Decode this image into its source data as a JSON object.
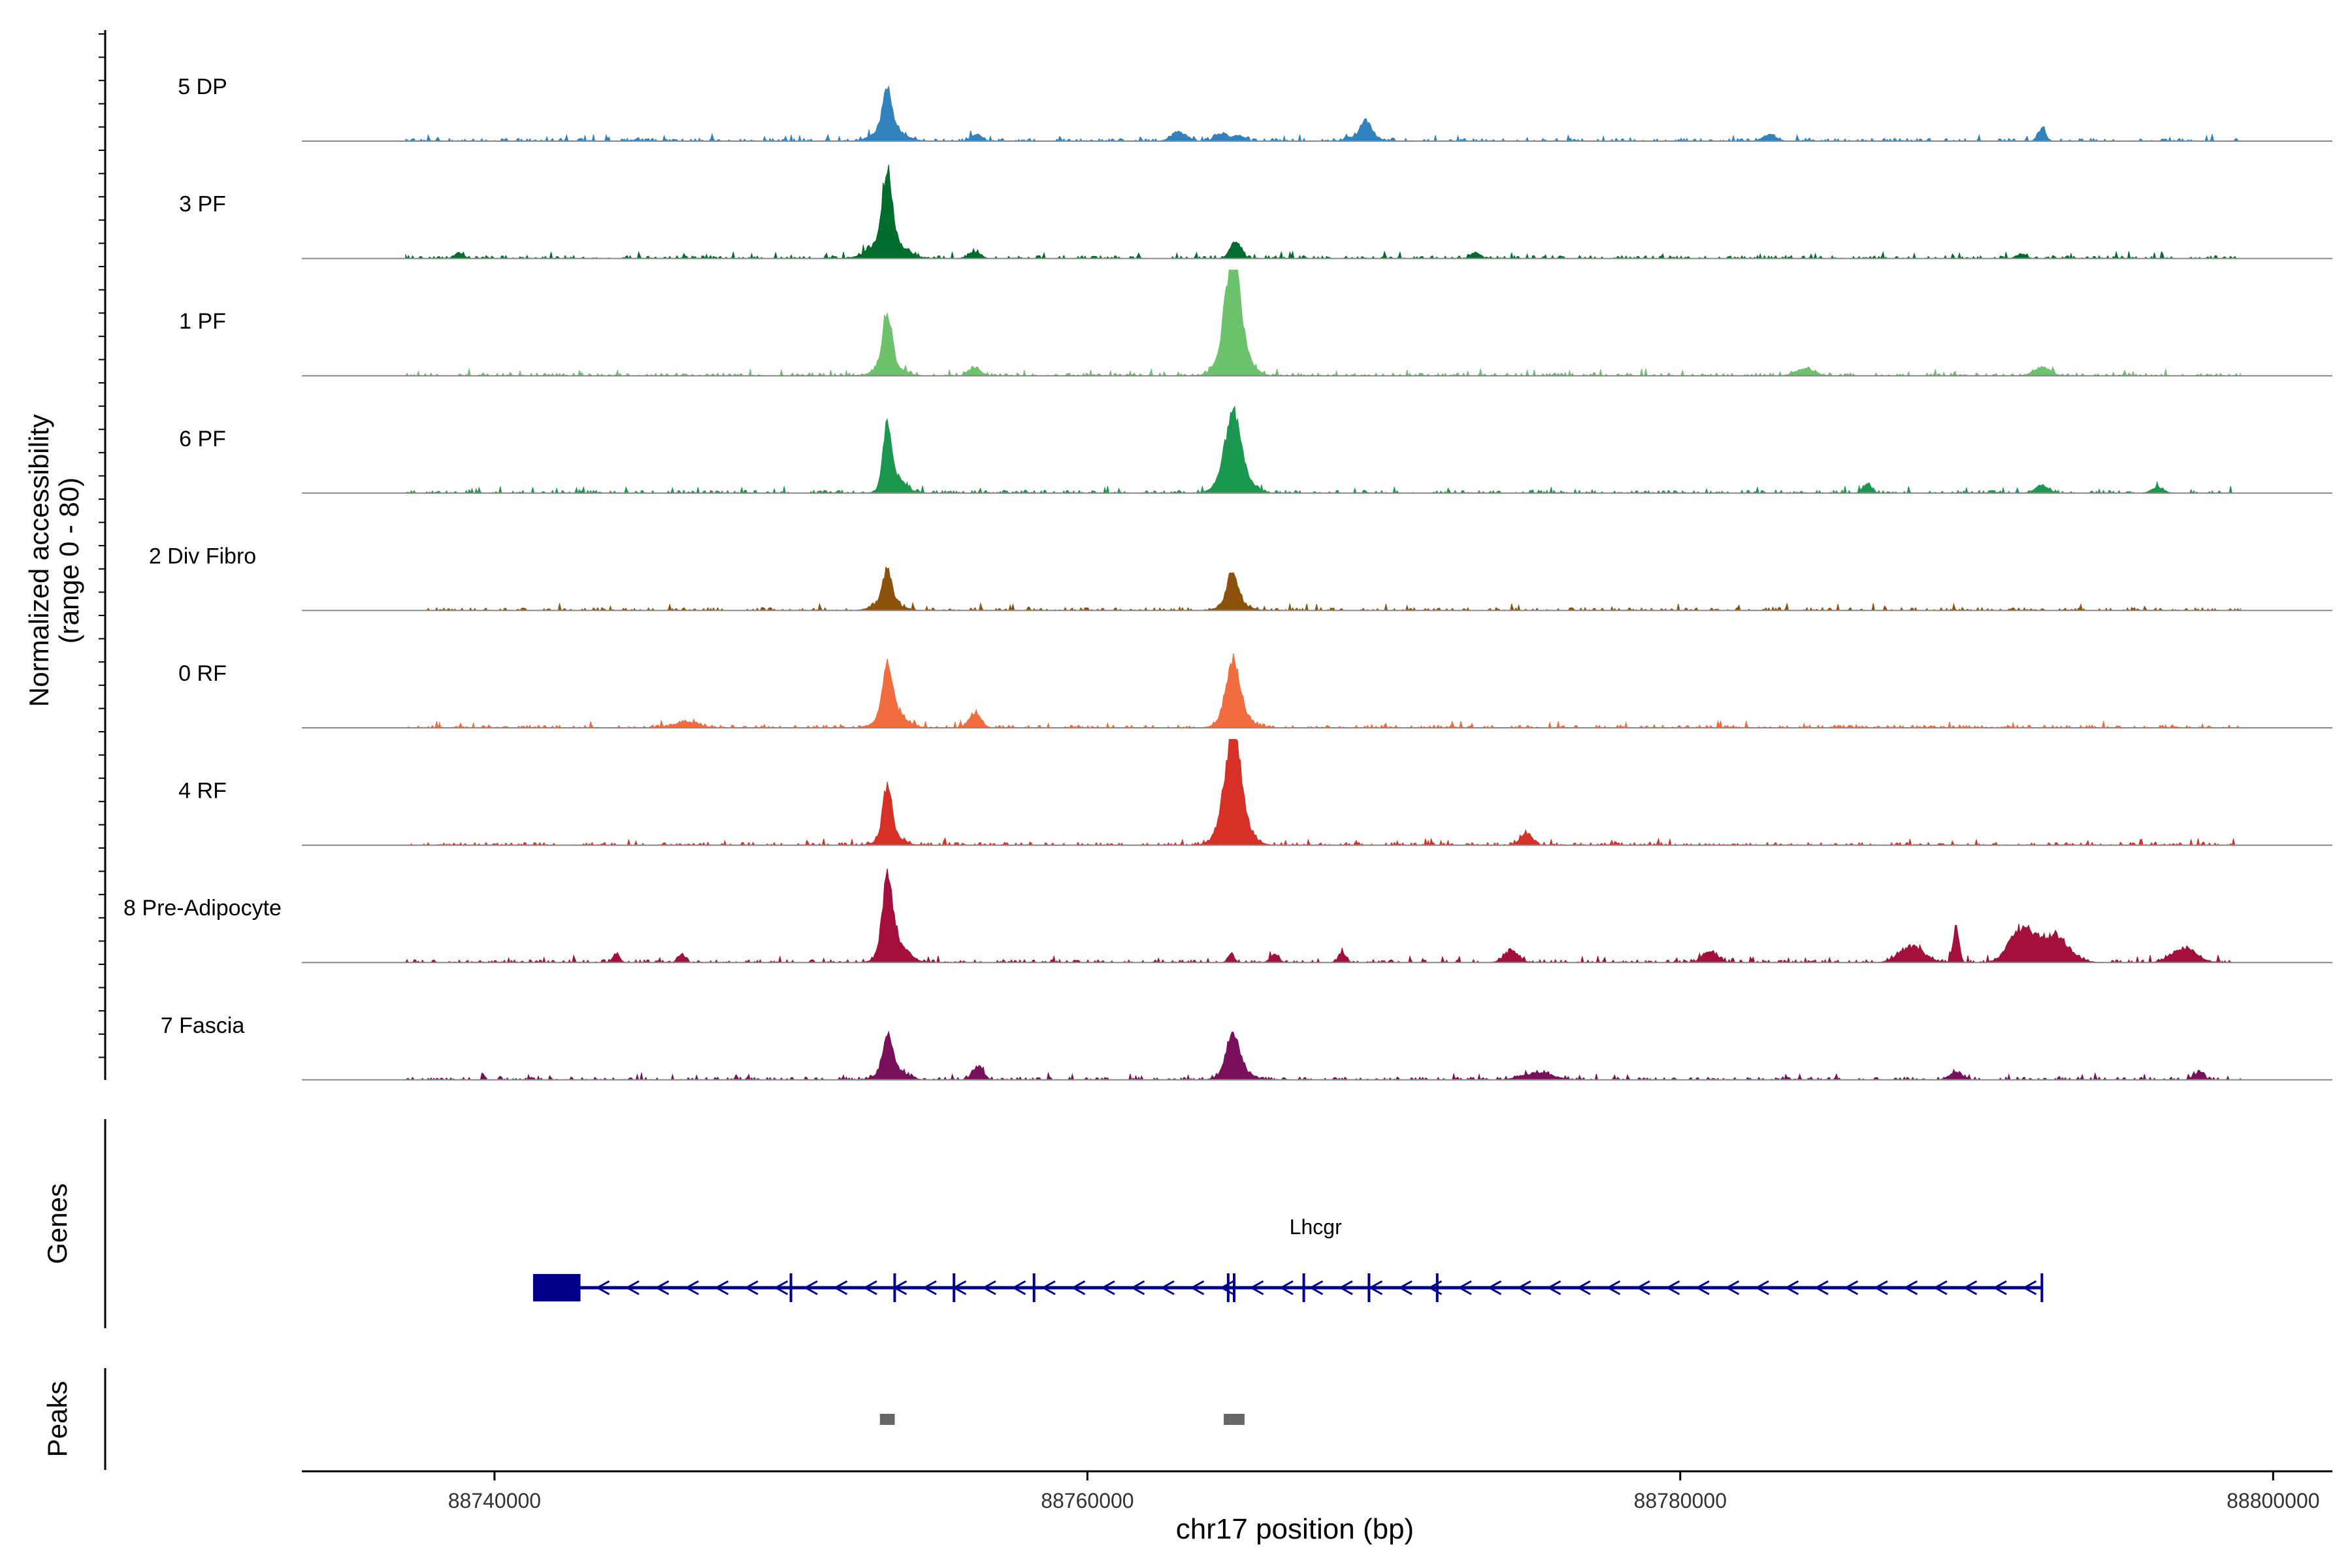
{
  "chart_data": {
    "type": "coverage",
    "chromosome": "chr17",
    "xlabel": "chr17 position (bp)",
    "xlim": [
      88733500,
      88802000
    ],
    "x_ticks": [
      88740000,
      88760000,
      88780000,
      88800000
    ],
    "x_tick_labels": [
      "88740000",
      "88760000",
      "88780000",
      "88800000"
    ],
    "coverage_panel": {
      "ylabel_line1": "Normalized accessibility",
      "ylabel_line2": "(range 0 - 80)",
      "ylim": [
        0,
        80
      ],
      "track_xrange": [
        88737000,
        88798900
      ],
      "tracks": [
        {
          "name": "5 DP",
          "color": "#3182bd",
          "peaks": [
            [
              88753250,
              2.0,
              150,
              35
            ],
            [
              88753300,
              0.8,
              450,
              12
            ],
            [
              88756250,
              0.8,
              180,
              6
            ],
            [
              88763100,
              0.8,
              250,
              8
            ],
            [
              88764500,
              0.8,
              200,
              6
            ],
            [
              88765100,
              0.6,
              200,
              5
            ],
            [
              88769400,
              1.8,
              160,
              14
            ],
            [
              88769300,
              0.8,
              400,
              5
            ],
            [
              88783000,
              1.2,
              200,
              6
            ],
            [
              88792200,
              1.2,
              130,
              10
            ]
          ]
        },
        {
          "name": "3 PF",
          "color": "#006d2c",
          "peaks": [
            [
              88753250,
              1.8,
              150,
              62
            ],
            [
              88753250,
              0.8,
              500,
              18
            ],
            [
              88756200,
              0.8,
              180,
              6
            ],
            [
              88765000,
              1.2,
              180,
              15
            ],
            [
              88738800,
              0.8,
              150,
              5
            ],
            [
              88773100,
              0.8,
              160,
              5
            ],
            [
              88791500,
              0.8,
              160,
              4
            ]
          ]
        },
        {
          "name": "1 PF",
          "color": "#6cc36c",
          "peaks": [
            [
              88753250,
              1.2,
              150,
              45
            ],
            [
              88753300,
              0.6,
              400,
              10
            ],
            [
              88756200,
              0.8,
              200,
              7
            ],
            [
              88764900,
              2.2,
              220,
              83
            ],
            [
              88764950,
              1.0,
              420,
              32
            ],
            [
              88784200,
              0.8,
              320,
              6
            ],
            [
              88792200,
              1.0,
              280,
              7
            ]
          ]
        },
        {
          "name": "6 PF",
          "color": "#1a9850",
          "peaks": [
            [
              88753250,
              1.4,
              140,
              48
            ],
            [
              88753500,
              1.2,
              320,
              15
            ],
            [
              88764900,
              2.0,
              240,
              45
            ],
            [
              88764950,
              1.0,
              420,
              25
            ],
            [
              88786300,
              0.8,
              150,
              7
            ],
            [
              88792200,
              0.8,
              200,
              7
            ],
            [
              88796100,
              0.8,
              200,
              5
            ]
          ]
        },
        {
          "name": "2 Div Fibro",
          "color": "#8c510a",
          "peaks": [
            [
              88753250,
              1.2,
              150,
              28
            ],
            [
              88753250,
              0.6,
              400,
              8
            ],
            [
              88764900,
              1.2,
              170,
              28
            ],
            [
              88764950,
              0.6,
              400,
              7
            ]
          ]
        },
        {
          "name": "0 RF",
          "color": "#f16d3f",
          "peaks": [
            [
              88753250,
              1.4,
              150,
              42
            ],
            [
              88753400,
              0.8,
              400,
              16
            ],
            [
              88756200,
              0.8,
              200,
              12
            ],
            [
              88764900,
              1.6,
              220,
              42
            ],
            [
              88765000,
              0.8,
              400,
              15
            ],
            [
              88746500,
              0.6,
              400,
              5
            ]
          ]
        },
        {
          "name": "4 RF",
          "color": "#d73027",
          "peaks": [
            [
              88753250,
              1.4,
              140,
              45
            ],
            [
              88753350,
              0.6,
              350,
              10
            ],
            [
              88764900,
              2.0,
              240,
              72
            ],
            [
              88764950,
              1.0,
              420,
              30
            ],
            [
              88774800,
              1.0,
              200,
              10
            ]
          ]
        },
        {
          "name": "8 Pre-Adipocyte",
          "color": "#a50f3b",
          "peaks": [
            [
              88753250,
              1.8,
              160,
              65
            ],
            [
              88753500,
              1.0,
              380,
              18
            ],
            [
              88744100,
              0.6,
              120,
              7
            ],
            [
              88746300,
              0.6,
              120,
              7
            ],
            [
              88764850,
              0.6,
              100,
              8
            ],
            [
              88766300,
              0.6,
              140,
              7
            ],
            [
              88768600,
              0.6,
              120,
              9
            ],
            [
              88774300,
              0.8,
              240,
              10
            ],
            [
              88781000,
              0.8,
              240,
              10
            ],
            [
              88787800,
              1.0,
              400,
              14
            ],
            [
              88789300,
              0.5,
              100,
              30
            ],
            [
              88791500,
              1.2,
              400,
              28
            ],
            [
              88792600,
              1.4,
              500,
              22
            ],
            [
              88797000,
              1.0,
              400,
              12
            ]
          ]
        },
        {
          "name": "7 Fascia",
          "color": "#7a0f5c",
          "peaks": [
            [
              88753250,
              1.6,
              140,
              28
            ],
            [
              88753400,
              1.0,
              380,
              12
            ],
            [
              88756300,
              0.8,
              180,
              12
            ],
            [
              88764900,
              1.4,
              200,
              28
            ],
            [
              88765000,
              0.8,
              380,
              12
            ],
            [
              88775200,
              1.2,
              500,
              6
            ],
            [
              88789300,
              0.8,
              220,
              6
            ],
            [
              88797500,
              0.6,
              150,
              7
            ]
          ]
        }
      ]
    },
    "genes_panel": {
      "ylabel": "Genes",
      "gene": "Lhcgr",
      "strand": "-",
      "start": 88741300,
      "end": 88792200,
      "utr_block": [
        88741300,
        88742900
      ],
      "exons": [
        88750000,
        88753500,
        88755500,
        88758200,
        88764750,
        88764950,
        88767300,
        88769500,
        88771800,
        88792200
      ]
    },
    "peaks_panel": {
      "ylabel": "Peaks",
      "regions": [
        [
          88753000,
          88753500
        ],
        [
          88764600,
          88765300
        ]
      ]
    }
  }
}
